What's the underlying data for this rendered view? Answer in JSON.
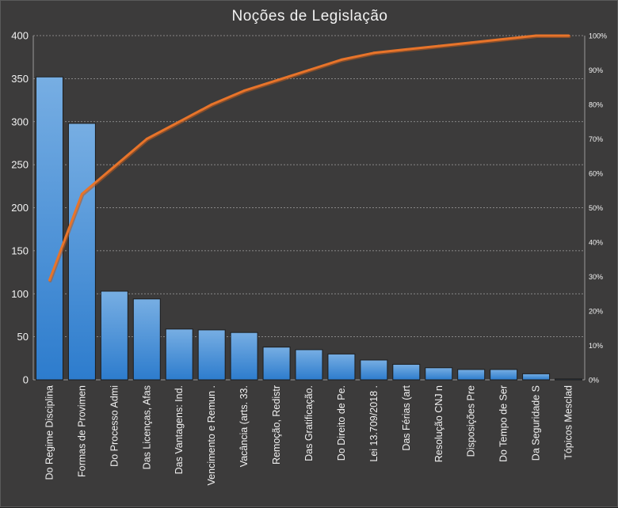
{
  "chart_data": {
    "type": "bar",
    "title": "Noções de Legislação",
    "categories": [
      "Do Regime Disciplina",
      "Formas de Provimen",
      "Do Processo Admi",
      "Das Licenças, Afas",
      "Das Vantagens: Ind.",
      "Vencimento e Remun .",
      "Vacância (arts. 33.",
      "Remoção, Redistr",
      "Das Gratificação.",
      "Do Direito de Pe.",
      "Lei 13.709/2018 .",
      "Das Férias (art",
      "Resolução CNJ n",
      "Disposições Pre",
      "Do Tempo de Ser",
      "Da Seguridade S",
      "Tópicos Mesclad"
    ],
    "series": [
      {
        "values": [
          352,
          298,
          103,
          94,
          59,
          58,
          55,
          38,
          35,
          30,
          23,
          18,
          14,
          12,
          12,
          7,
          1
        ]
      },
      {
        "values": [
          29,
          54,
          62,
          70,
          75,
          80,
          84,
          87,
          90,
          93,
          95,
          96,
          97,
          98,
          99,
          100,
          100
        ]
      }
    ],
    "y_left": {
      "ticks": [
        "0",
        "50",
        "100",
        "150",
        "200",
        "250",
        "300",
        "350",
        "400"
      ],
      "ylim": [
        0,
        400
      ]
    },
    "y_right": {
      "ticks": [
        "0%",
        "10%",
        "20%",
        "30%",
        "40%",
        "50%",
        "60%",
        "70%",
        "80%",
        "90%",
        "100%"
      ],
      "ylim": [
        0,
        100
      ]
    },
    "grid": true,
    "legend": "none"
  },
  "colors": {
    "background": "#3c3b3b",
    "bar_top": "#77aee3",
    "bar_bottom": "#2d7ccd",
    "bar_edge": "#1d1d1d",
    "line": "#e8742a",
    "line_shadow": "#b85a1f",
    "text": "#f2f2f2"
  }
}
